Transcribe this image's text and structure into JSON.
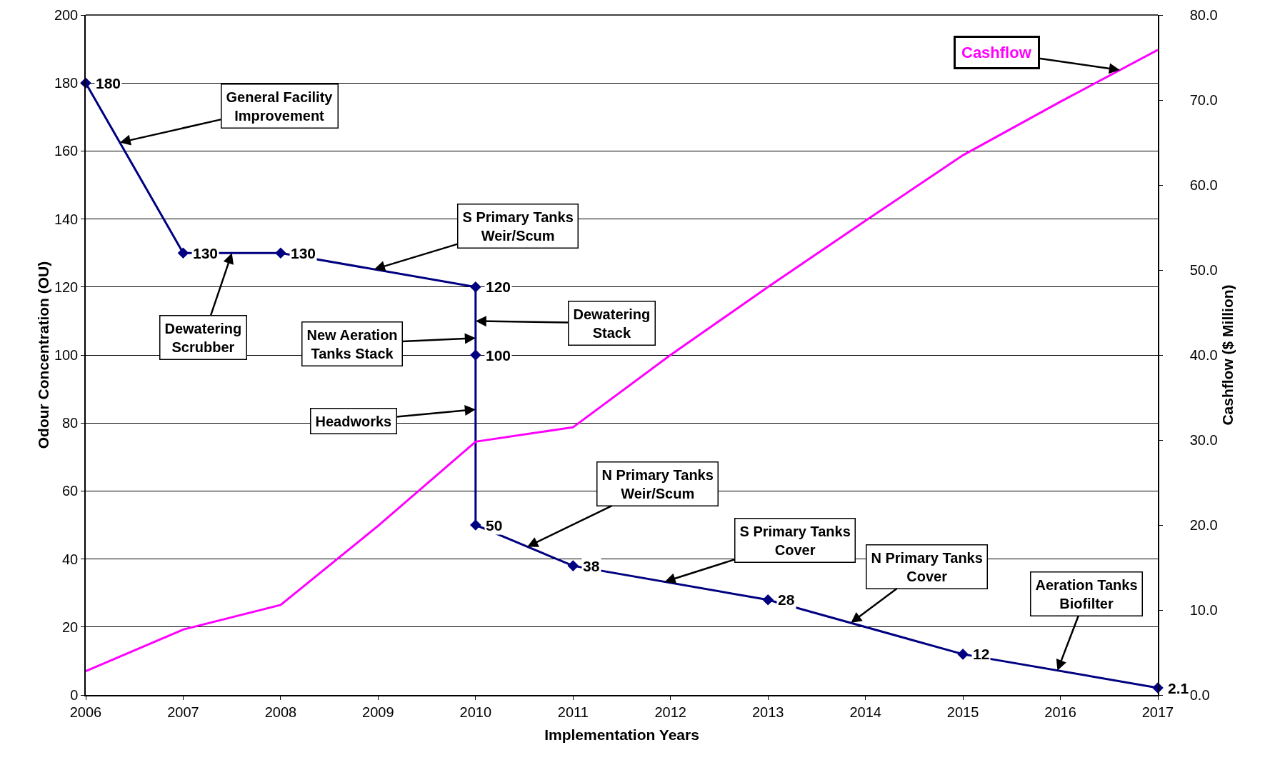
{
  "chart_data": {
    "type": "line",
    "xlabel": "Implementation Years",
    "ylabel": "Odour Concentration (OU)",
    "y2label": "Cashflow ($ Million)",
    "xlim": [
      2006,
      2017
    ],
    "xticks": [
      2006,
      2007,
      2008,
      2009,
      2010,
      2011,
      2012,
      2013,
      2014,
      2015,
      2016,
      2017
    ],
    "ylim": [
      0,
      200
    ],
    "yticks": [
      0,
      20,
      40,
      60,
      80,
      100,
      120,
      140,
      160,
      180,
      200
    ],
    "y2lim": [
      0,
      80
    ],
    "y2ticks": [
      {
        "value": 0,
        "label": "0.0"
      },
      {
        "value": 10,
        "label": "10.0"
      },
      {
        "value": 20,
        "label": "20.0"
      },
      {
        "value": 30,
        "label": "30.0"
      },
      {
        "value": 40,
        "label": "40.0"
      },
      {
        "value": 50,
        "label": "50.0"
      },
      {
        "value": 60,
        "label": "60.0"
      },
      {
        "value": 70,
        "label": "70.0"
      },
      {
        "value": 80,
        "label": "80.0"
      }
    ],
    "grid": "y",
    "legend": false,
    "series": [
      {
        "color": "#000080",
        "marker": "diamond",
        "data_labels": true,
        "x": [
          2006,
          2007,
          2008,
          2010,
          2010,
          2010,
          2011,
          2013,
          2015,
          2017
        ],
        "values": [
          180,
          130,
          130,
          120,
          100,
          50,
          38,
          28,
          12,
          2.1
        ]
      },
      {
        "name": "Cashflow",
        "color": "#ff00ff",
        "marker": "none",
        "axis": "y2",
        "x": [
          2006,
          2007,
          2008,
          2009,
          2010,
          2011,
          2012,
          2013,
          2014,
          2015,
          2016,
          2017
        ],
        "values": [
          2.8,
          7.7,
          10.6,
          19.9,
          29.8,
          31.5,
          40,
          48,
          55.8,
          63.5,
          69.8,
          75.9
        ]
      }
    ],
    "annotations": [
      {
        "text": "General Facility\nImprovement",
        "x": 2006.35,
        "y": 162.5
      },
      {
        "text": "Dewatering\nScrubber",
        "x": 2007.5,
        "y": 130
      },
      {
        "text": "S Primary Tanks\nWeir/Scum",
        "x": 2008.96,
        "y": 125.2
      },
      {
        "text": "Dewatering\nStack",
        "x": 2010,
        "y": 110
      },
      {
        "text": "New Aeration\nTanks Stack",
        "x": 2010,
        "y": 105
      },
      {
        "text": "Headworks",
        "x": 2010,
        "y": 84
      },
      {
        "text": "N Primary Tanks\nWeir/Scum",
        "x": 2010.53,
        "y": 43.6
      },
      {
        "text": "S Primary Tanks\nCover",
        "x": 2011.94,
        "y": 33.3
      },
      {
        "text": "N Primary Tanks\nCover",
        "x": 2013.85,
        "y": 21.2
      },
      {
        "text": "Aeration Tanks\nBiofilter",
        "x": 2015.97,
        "y": 7.2
      }
    ]
  }
}
